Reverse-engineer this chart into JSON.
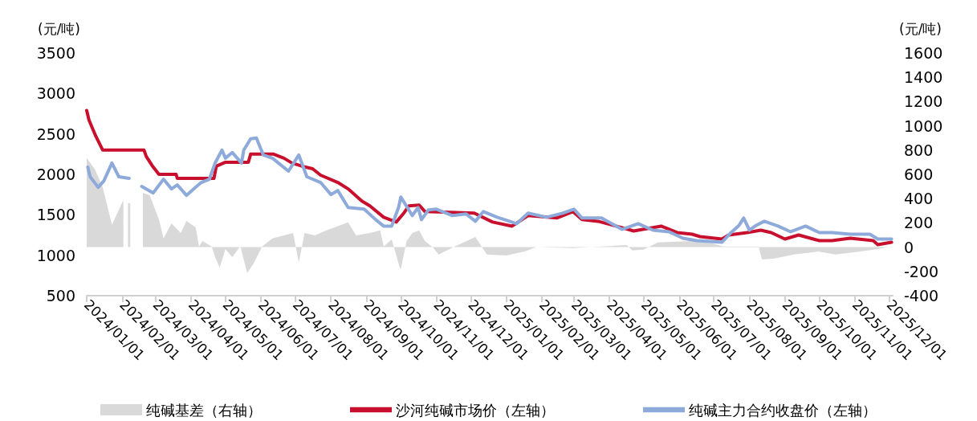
{
  "chart_data": {
    "type": "line",
    "ylabel": "(元/吨)",
    "y2label": "(元/吨)",
    "xlim": [
      "2024-01-01",
      "2025-12-04"
    ],
    "xticks": [
      {
        "value": "2024-01-01",
        "label": "2024/01/01"
      },
      {
        "value": "2024-02-01",
        "label": "2024/02/01"
      },
      {
        "value": "2024-03-01",
        "label": "2024/03/01"
      },
      {
        "value": "2024-04-01",
        "label": "2024/04/01"
      },
      {
        "value": "2024-05-01",
        "label": "2024/05/01"
      },
      {
        "value": "2024-06-01",
        "label": "2024/06/01"
      },
      {
        "value": "2024-07-01",
        "label": "2024/07/01"
      },
      {
        "value": "2024-08-01",
        "label": "2024/08/01"
      },
      {
        "value": "2024-09-01",
        "label": "2024/09/01"
      },
      {
        "value": "2024-10-01",
        "label": "2024/10/01"
      },
      {
        "value": "2024-11-01",
        "label": "2024/11/01"
      },
      {
        "value": "2024-12-01",
        "label": "2024/12/01"
      },
      {
        "value": "2025-01-01",
        "label": "2025/01/01"
      },
      {
        "value": "2025-02-01",
        "label": "2025/02/01"
      },
      {
        "value": "2025-03-01",
        "label": "2025/03/01"
      },
      {
        "value": "2025-04-01",
        "label": "2025/04/01"
      },
      {
        "value": "2025-05-01",
        "label": "2025/05/01"
      },
      {
        "value": "2025-06-01",
        "label": "2025/06/01"
      },
      {
        "value": "2025-07-01",
        "label": "2025/07/01"
      },
      {
        "value": "2025-08-01",
        "label": "2025/08/01"
      },
      {
        "value": "2025-09-01",
        "label": "2025/09/01"
      },
      {
        "value": "2025-10-01",
        "label": "2025/10/01"
      },
      {
        "value": "2025-11-01",
        "label": "2025/11/01"
      },
      {
        "value": "2025-12-01",
        "label": "2025/12/01"
      }
    ],
    "ylim": [
      500,
      3500
    ],
    "yticks": [
      500,
      1000,
      1500,
      2000,
      2500,
      3000,
      3500
    ],
    "y2lim": [
      -400,
      1600
    ],
    "y2ticks": [
      -400,
      -200,
      0,
      200,
      400,
      600,
      800,
      1000,
      1200,
      1400,
      1600
    ],
    "grid": false,
    "legend": "bottom",
    "marker": "none",
    "line_style": "solid",
    "series": [
      {
        "name": "纯碱基差（右轴）",
        "type": "area",
        "axis": "y2",
        "color": "#d9d9d9",
        "x": [
          "2024-01-01",
          "2024-01-08",
          "2024-01-15",
          "2024-01-23",
          "2024-02-01",
          "2024-02-02",
          "2024-02-05",
          "2024-02-06",
          "2024-02-08",
          "2024-02-12",
          "2024-02-19",
          "2024-02-25",
          "2024-03-04",
          "2024-03-08",
          "2024-03-15",
          "2024-03-23",
          "2024-03-28",
          "2024-04-05",
          "2024-04-08",
          "2024-04-11",
          "2024-04-19",
          "2024-04-22",
          "2024-04-26",
          "2024-05-01",
          "2024-05-07",
          "2024-05-14",
          "2024-05-20",
          "2024-05-26",
          "2024-06-02",
          "2024-06-11",
          "2024-06-21",
          "2024-06-29",
          "2024-07-04",
          "2024-07-09",
          "2024-07-18",
          "2024-07-28",
          "2024-08-16",
          "2024-08-23",
          "2024-09-04",
          "2024-09-13",
          "2024-09-16",
          "2024-09-23",
          "2024-09-30",
          "2024-10-01",
          "2024-10-06",
          "2024-10-11",
          "2024-10-17",
          "2024-10-22",
          "2024-10-29",
          "2024-11-03",
          "2024-11-17",
          "2024-12-05",
          "2024-12-15",
          "2025-01-01",
          "2025-01-17",
          "2025-01-27",
          "2025-02-28",
          "2025-04-16",
          "2025-04-21",
          "2025-05-01",
          "2025-05-13",
          "2025-06-11",
          "2025-06-30",
          "2025-07-09",
          "2025-07-28",
          "2025-08-09",
          "2025-08-12",
          "2025-08-23",
          "2025-09-09",
          "2025-09-30",
          "2025-10-15",
          "2025-11-06",
          "2025-11-21",
          "2025-12-03"
        ],
        "values": [
          734,
          645,
          494,
          183,
          370,
          381,
          null,
          361,
          361,
          null,
          447,
          427,
          228,
          72,
          196,
          116,
          216,
          163,
          6,
          50,
          6,
          -82,
          -169,
          -16,
          -82,
          8,
          -214,
          -126,
          6,
          72,
          96,
          116,
          -126,
          116,
          96,
          138,
          204,
          96,
          116,
          138,
          6,
          63,
          -169,
          -181,
          50,
          116,
          138,
          50,
          -3,
          -60,
          6,
          83,
          -60,
          -69,
          -36,
          0,
          -8,
          17,
          -27,
          -20,
          39,
          50,
          30,
          6,
          6,
          6,
          -102,
          -93,
          -60,
          -36,
          -60,
          -36,
          -16,
          6
        ]
      },
      {
        "name": "沙河纯碱市场价（左轴）",
        "color": "#c8102e",
        "x": [
          "2024-01-01",
          "2024-01-03",
          "2024-01-09",
          "2024-01-15",
          "2024-02-20",
          "2024-02-22",
          "2024-02-27",
          "2024-03-04",
          "2024-03-19",
          "2024-03-20",
          "2024-04-21",
          "2024-04-23",
          "2024-05-01",
          "2024-05-21",
          "2024-05-23",
          "2024-06-12",
          "2024-06-21",
          "2024-06-28",
          "2024-07-07",
          "2024-07-16",
          "2024-07-23",
          "2024-08-07",
          "2024-08-16",
          "2024-08-28",
          "2024-09-04",
          "2024-09-16",
          "2024-09-27",
          "2024-10-03",
          "2024-10-08",
          "2024-10-17",
          "2024-10-22",
          "2024-12-04",
          "2024-12-20",
          "2025-01-06",
          "2025-01-20",
          "2025-02-14",
          "2025-02-28",
          "2025-03-08",
          "2025-03-22",
          "2025-04-12",
          "2025-04-22",
          "2025-05-16",
          "2025-05-30",
          "2025-06-12",
          "2025-06-19",
          "2025-07-08",
          "2025-07-14",
          "2025-07-30",
          "2025-08-11",
          "2025-08-20",
          "2025-09-01",
          "2025-09-13",
          "2025-10-01",
          "2025-10-12",
          "2025-10-28",
          "2025-11-17",
          "2025-11-21",
          "2025-12-03"
        ],
        "values": [
          2790,
          2670,
          2470,
          2300,
          2300,
          2220,
          2110,
          2000,
          2000,
          1950,
          1950,
          2100,
          2150,
          2150,
          2250,
          2250,
          2200,
          2140,
          2100,
          2070,
          1990,
          1900,
          1820,
          1670,
          1610,
          1470,
          1410,
          1510,
          1610,
          1620,
          1540,
          1520,
          1410,
          1360,
          1490,
          1460,
          1540,
          1440,
          1420,
          1340,
          1300,
          1360,
          1280,
          1260,
          1230,
          1200,
          1250,
          1280,
          1310,
          1280,
          1200,
          1250,
          1180,
          1180,
          1210,
          1180,
          1130,
          1160
        ]
      },
      {
        "name": "纯碱主力合约收盘价（左轴）",
        "color": "#8eaadb",
        "x": [
          "2024-01-02",
          "2024-01-04",
          "2024-01-11",
          "2024-01-16",
          "2024-01-23",
          "2024-01-29",
          "2024-02-07",
          "2024-02-15",
          "2024-02-18",
          "2024-02-28",
          "2024-03-08",
          "2024-03-15",
          "2024-03-20",
          "2024-03-28",
          "2024-04-05",
          "2024-04-10",
          "2024-04-17",
          "2024-04-22",
          "2024-04-28",
          "2024-05-01",
          "2024-05-07",
          "2024-05-15",
          "2024-05-17",
          "2024-05-23",
          "2024-05-28",
          "2024-06-03",
          "2024-06-11",
          "2024-06-25",
          "2024-07-04",
          "2024-07-11",
          "2024-07-23",
          "2024-08-01",
          "2024-08-07",
          "2024-08-16",
          "2024-08-30",
          "2024-09-09",
          "2024-09-16",
          "2024-09-23",
          "2024-09-29",
          "2024-10-01",
          "2024-10-11",
          "2024-10-16",
          "2024-10-19",
          "2024-10-25",
          "2024-11-01",
          "2024-11-15",
          "2024-11-27",
          "2024-12-05",
          "2024-12-12",
          "2024-12-24",
          "2025-01-10",
          "2025-01-20",
          "2025-02-05",
          "2025-02-19",
          "2025-03-01",
          "2025-03-08",
          "2025-03-25",
          "2025-04-12",
          "2025-04-26",
          "2025-05-09",
          "2025-05-23",
          "2025-06-04",
          "2025-06-16",
          "2025-07-08",
          "2025-07-16",
          "2025-07-23",
          "2025-07-27",
          "2025-08-01",
          "2025-08-07",
          "2025-08-14",
          "2025-08-26",
          "2025-09-06",
          "2025-09-19",
          "2025-10-01",
          "2025-10-12",
          "2025-10-28",
          "2025-11-14",
          "2025-11-21",
          "2025-12-03"
        ],
        "values": [
          2090,
          1970,
          1840,
          1920,
          2140,
          1970,
          1950,
          null,
          1850,
          1770,
          1940,
          1820,
          1870,
          1740,
          1840,
          1900,
          1940,
          2140,
          2300,
          2200,
          2270,
          2140,
          2300,
          2440,
          2450,
          2240,
          2200,
          2040,
          2240,
          1970,
          1900,
          1750,
          1800,
          1590,
          1570,
          1440,
          1360,
          1360,
          1590,
          1720,
          1490,
          1590,
          1440,
          1560,
          1570,
          1490,
          1510,
          1420,
          1540,
          1470,
          1390,
          1520,
          1470,
          1520,
          1570,
          1460,
          1460,
          1320,
          1390,
          1310,
          1290,
          1210,
          1180,
          1160,
          1280,
          1370,
          1460,
          1310,
          1370,
          1420,
          1360,
          1290,
          1360,
          1280,
          1280,
          1260,
          1260,
          1200,
          1200
        ]
      }
    ]
  }
}
